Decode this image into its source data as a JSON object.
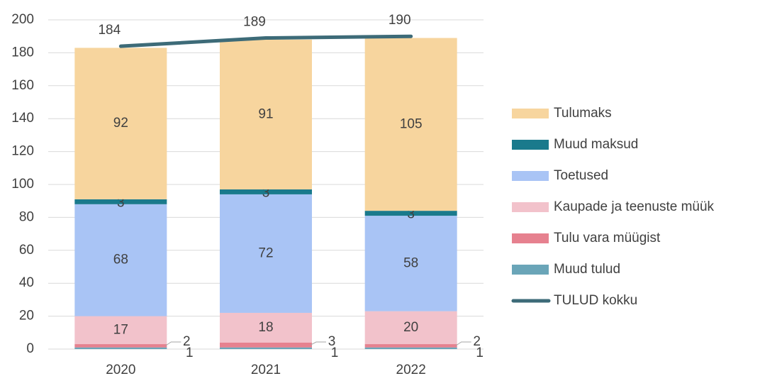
{
  "chart_data": {
    "type": "bar",
    "stacked": true,
    "categories": [
      "2020",
      "2021",
      "2022"
    ],
    "series": [
      {
        "name": "Tulumaks",
        "color": "#f7d59e",
        "values": [
          92,
          91,
          105
        ]
      },
      {
        "name": "Muud maksud",
        "color": "#1a7a8c",
        "values": [
          3,
          3,
          3
        ]
      },
      {
        "name": "Toetused",
        "color": "#a9c4f5",
        "values": [
          68,
          72,
          58
        ]
      },
      {
        "name": "Kaupade ja teenuste müük",
        "color": "#f2c2cb",
        "values": [
          17,
          18,
          20
        ]
      },
      {
        "name": "Tulu vara müügist",
        "color": "#e6818f",
        "values": [
          2,
          3,
          2
        ]
      },
      {
        "name": "Muud tulud",
        "color": "#6aa5b8",
        "values": [
          1,
          1,
          1
        ]
      },
      {
        "name": "TULUD kokku",
        "type": "line",
        "color": "#3d6b78",
        "values": [
          184,
          189,
          190
        ]
      }
    ],
    "ylim": [
      0,
      200
    ],
    "yticks": [
      0,
      20,
      40,
      60,
      80,
      100,
      120,
      140,
      160,
      180,
      200
    ],
    "grid": true,
    "legend": "right"
  }
}
